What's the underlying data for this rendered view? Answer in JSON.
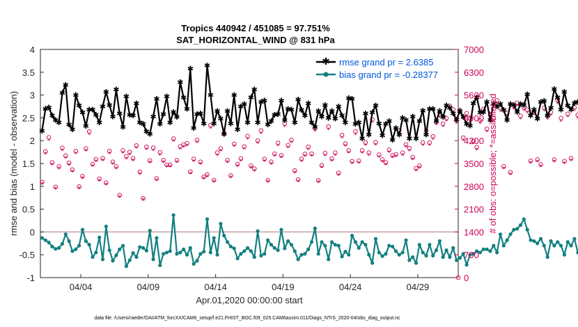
{
  "chart_data": {
    "type": "line",
    "title_line1": "Tropics 440942 / 451085 = 97.751%",
    "title_line2": "SAT_HORIZONTAL_WIND @ 831 hPa",
    "ylabel": "rmse and bias (model - observation)",
    "ylabel_right": "# of obs: o=possible; *=assimilated",
    "xlabel": "Apr.01,2020 00:00:00 start",
    "footnote": "data file: /Users/raeder/DAI/ATM_forcXX/CAM6_setup/f.e21.FHIST_BGC.f09_025.CAM6assim.011/Diags_NTrS_2020-04/obs_diag_output.nc",
    "xlim": [
      1,
      32
    ],
    "ylim": [
      -1,
      4
    ],
    "ylim_right": [
      0,
      7000
    ],
    "x_ticks": [
      4,
      9,
      14,
      19,
      24,
      29
    ],
    "x_tick_labels": [
      "04/04",
      "04/09",
      "04/14",
      "04/19",
      "04/24",
      "04/29"
    ],
    "y_ticks": [
      "-1",
      "-0.5",
      "0",
      "0.5",
      "1",
      "1.5",
      "2",
      "2.5",
      "3",
      "3.5",
      "4"
    ],
    "y_ticks_right": [
      "0",
      "700",
      "1400",
      "2100",
      "2800",
      "3500",
      "4200",
      "4900",
      "5600",
      "6300",
      "7000"
    ],
    "legend": [
      {
        "name": "rmse grand pr = 2.6385",
        "color": "#000000"
      },
      {
        "name": "bias grand pr = -0.28377",
        "color": "#138080"
      }
    ],
    "series_colors": {
      "rmse": "#000000",
      "bias": "#138080",
      "obs": "#cc0055",
      "zero_line": "#c8a0a0"
    },
    "x_step_days": 0.25,
    "x_start": 1.125,
    "rmse": [
      2.22,
      2.7,
      2.73,
      2.55,
      2.45,
      2.4,
      3.05,
      3.22,
      2.35,
      2.25,
      3.0,
      2.77,
      2.62,
      2.32,
      2.68,
      2.68,
      2.57,
      2.4,
      2.75,
      3.07,
      2.78,
      2.53,
      3.12,
      2.6,
      2.3,
      2.97,
      2.57,
      2.55,
      2.82,
      2.4,
      2.37,
      2.2,
      2.15,
      2.53,
      2.92,
      2.37,
      2.58,
      2.97,
      2.4,
      2.63,
      2.52,
      3.28,
      2.95,
      2.7,
      3.58,
      2.28,
      2.58,
      2.6,
      2.38,
      3.65,
      3.0,
      2.38,
      2.65,
      2.48,
      2.15,
      2.65,
      2.38,
      3.0,
      2.25,
      2.75,
      2.8,
      2.4,
      2.95,
      3.12,
      2.4,
      2.85,
      2.88,
      2.35,
      2.43,
      2.57,
      2.58,
      2.88,
      2.45,
      2.7,
      2.68,
      2.4,
      2.9,
      2.67,
      2.55,
      2.82,
      2.4,
      2.3,
      2.65,
      2.53,
      2.78,
      2.5,
      2.65,
      2.48,
      2.75,
      2.55,
      2.4,
      2.93,
      2.92,
      2.37,
      2.4,
      2.05,
      2.6,
      2.13,
      2.62,
      2.77,
      2.38,
      2.12,
      2.37,
      2.43,
      2.02,
      2.28,
      2.13,
      2.5,
      2.45,
      2.05,
      2.53,
      2.05,
      2.43,
      2.66,
      2.13,
      2.7,
      2.7,
      2.43,
      2.65,
      2.52,
      2.77,
      2.72,
      2.6,
      2.46,
      2.65,
      2.52,
      2.37,
      2.33,
      2.82,
      2.95,
      2.62,
      2.63,
      2.85,
      2.45,
      2.81,
      2.75,
      2.8,
      2.67,
      2.45,
      2.8,
      2.78,
      2.63,
      2.8,
      2.78,
      3.02,
      2.55,
      2.68,
      2.48,
      2.85,
      2.87,
      2.55,
      2.72,
      3.13,
      2.95,
      2.68,
      3.07,
      2.77,
      2.68,
      2.83,
      2.85
    ],
    "bias": [
      -0.13,
      -0.18,
      -0.23,
      -0.32,
      -0.37,
      -0.35,
      -0.26,
      -0.05,
      -0.2,
      -0.42,
      -0.38,
      -0.3,
      0.05,
      -0.2,
      -0.28,
      -0.55,
      -0.45,
      -0.12,
      -0.6,
      0.12,
      -0.4,
      -0.63,
      -0.51,
      -0.38,
      -0.3,
      -0.75,
      -0.62,
      -0.46,
      -0.55,
      -0.33,
      -0.35,
      -0.41,
      0.03,
      -0.6,
      -0.13,
      -0.73,
      -0.48,
      -0.45,
      -0.42,
      0.37,
      -0.48,
      -0.45,
      -0.38,
      -0.5,
      -0.35,
      -0.7,
      -0.63,
      -0.48,
      -0.43,
      0.28,
      -0.45,
      -0.13,
      -0.5,
      0.18,
      -0.08,
      -0.22,
      -0.32,
      -0.36,
      -0.58,
      -0.48,
      -0.42,
      -0.35,
      -0.42,
      -0.55,
      0.02,
      -0.52,
      -0.48,
      -0.18,
      -0.28,
      -0.35,
      -0.4,
      0.05,
      -0.36,
      -0.2,
      -0.28,
      -0.42,
      -0.6,
      -0.5,
      -0.48,
      -0.38,
      -0.22,
      0.08,
      -0.48,
      -0.22,
      -0.3,
      -0.6,
      -0.22,
      -0.28,
      -0.3,
      -0.54,
      -0.43,
      -0.5,
      -0.08,
      -0.22,
      -0.35,
      -0.22,
      -0.28,
      -0.5,
      -0.68,
      -0.15,
      -0.45,
      -0.53,
      -0.48,
      -0.3,
      -0.32,
      -0.42,
      -0.5,
      -0.45,
      -0.18,
      -0.62,
      -0.55,
      -0.68,
      -0.28,
      -0.45,
      -0.52,
      -0.28,
      -0.52,
      -0.4,
      -0.2,
      -0.55,
      -0.4,
      -0.55,
      -0.35,
      -0.62,
      -0.57,
      -0.48,
      -0.72,
      -0.5,
      -0.48,
      -0.42,
      -0.45,
      -0.38,
      -0.38,
      -0.42,
      -0.3,
      -0.45,
      -0.05,
      -0.3,
      -0.18,
      -0.05,
      0.05,
      0.07,
      0.15,
      0.28,
      0.05,
      -0.18,
      -0.2,
      -0.25,
      -0.15,
      -0.3,
      -0.55,
      -0.2,
      -0.3,
      -0.22,
      -0.3,
      -0.5,
      -0.22,
      -0.3,
      -0.15,
      -0.45,
      -0.48
    ],
    "obs_possible": [
      2930,
      3870,
      4300,
      3530,
      2780,
      3410,
      3980,
      3740,
      3520,
      3310,
      3880,
      2790,
      3110,
      3960,
      4480,
      3480,
      3630,
      3030,
      3660,
      2910,
      3880,
      3550,
      3410,
      2530,
      3900,
      3720,
      3850,
      3660,
      4050,
      3240,
      2430,
      4010,
      3590,
      3980,
      3040,
      3840,
      3600,
      3460,
      3460,
      4260,
      3600,
      4020,
      4080,
      4120,
      3250,
      3640,
      4220,
      3550,
      3090,
      3160,
      4670,
      2990,
      3830,
      3960,
      4430,
      3600,
      3130,
      4100,
      3480,
      3650,
      4020,
      4340,
      3430,
      3340,
      4200,
      4510,
      3640,
      2990,
      3550,
      3800,
      4130,
      3750,
      4720,
      4060,
      4220,
      3280,
      3010,
      3640,
      3790,
      4010,
      3800,
      4580,
      2980,
      3440,
      3820,
      4630,
      3650,
      3830,
      3210,
      4370,
      4110,
      3900,
      3570,
      4480,
      3580,
      3900,
      4140,
      3830,
      4850,
      4150,
      3770,
      3620,
      3530,
      3920,
      3750,
      3780,
      4520,
      3830,
      4080,
      3970,
      3690,
      3350,
      3430,
      4140,
      4510,
      4140,
      4330,
      4770,
      5010,
      4720,
      4890,
      5260,
      5160,
      4820,
      5130,
      4290,
      5040,
      4890,
      4190,
      4000,
      4820,
      5170,
      4560,
      4990,
      4880,
      5440,
      5200,
      3410,
      5050,
      3230,
      5260,
      5360,
      4960,
      5220,
      5150,
      3580,
      5080,
      3620,
      3470,
      5210,
      4950,
      5070,
      3620,
      5440,
      4890,
      3570,
      5020,
      3660,
      5220,
      4990,
      2950,
      5170,
      4710,
      3400,
      5270,
      4590
    ],
    "obs_assimilated": [
      2880,
      3800,
      4220,
      3470,
      2730,
      3350,
      3910,
      3670,
      3460,
      3250,
      3810,
      2740,
      3050,
      3890,
      4400,
      3420,
      3570,
      2980,
      3600,
      2860,
      3810,
      3490,
      3350,
      2480,
      3830,
      3650,
      3780,
      3600,
      3980,
      3180,
      2390,
      3940,
      3530,
      3910,
      2990,
      3770,
      3540,
      3400,
      3400,
      4190,
      3540,
      3950,
      4010,
      4050,
      3190,
      3580,
      4150,
      3490,
      3040,
      3100,
      4590,
      2940,
      3760,
      3890,
      4350,
      3540,
      3080,
      4030,
      3420,
      3590,
      3950,
      4260,
      3370,
      3280,
      4130,
      4430,
      3580,
      2940,
      3490,
      3730,
      4060,
      3690,
      4640,
      3990,
      4150,
      3220,
      2960,
      3580,
      3730,
      3940,
      3740,
      4500,
      2930,
      3380,
      3750,
      4550,
      3590,
      3760,
      3150,
      4290,
      4040,
      3830,
      3510,
      4400,
      3520,
      3830,
      4070,
      3760,
      4770,
      4080,
      3700,
      3560,
      3470,
      3850,
      3690,
      3720,
      4440,
      3760,
      4010,
      3900,
      3630,
      3290,
      3370,
      4070,
      4430,
      4070,
      4250,
      4690,
      4920,
      4640,
      4810,
      5170,
      5070,
      4740,
      5040,
      4220,
      4950,
      4800,
      4120,
      3930,
      4740,
      5080,
      4480,
      4900,
      4800,
      5350,
      5110,
      3350,
      4970,
      3170,
      5170,
      5270,
      4880,
      5130,
      5060,
      3520,
      5000,
      3560,
      3410,
      5120,
      4870,
      4980,
      3560,
      5350,
      4800,
      3510,
      4940,
      3600,
      5130,
      4900,
      2900,
      5080,
      4630,
      3340,
      5180,
      4520
    ],
    "last_point_obs": 0
  }
}
